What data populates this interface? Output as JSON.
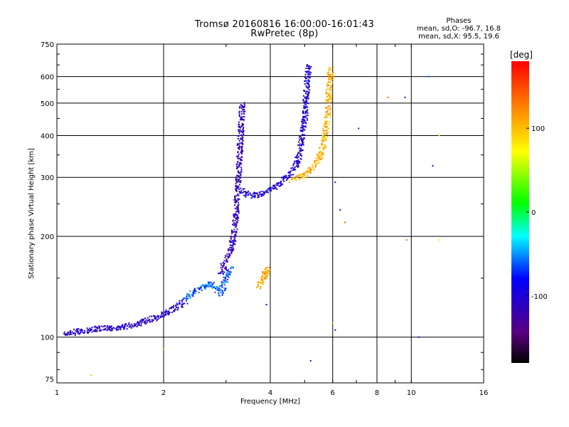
{
  "title": {
    "line1": "Tromsø 20160816 16:00:00-16:01:43",
    "line2": "RwPretec (8p)"
  },
  "stats": {
    "header": "Phases",
    "line_o": "mean, sd,O: -96.7, 16.8",
    "line_x": "mean, sd,X:  95.5, 19.6"
  },
  "chart_data": {
    "type": "scatter",
    "title": "Tromsø 20160816 16:00:00-16:01:43",
    "subtitle": "RwPretec (8p)",
    "xlabel": "Frequency [MHz]",
    "ylabel": "Stationary phase Virtual Height [km]",
    "x_scale": "log",
    "y_scale": "log",
    "xlim": [
      1,
      16
    ],
    "ylim": [
      73,
      750
    ],
    "x_ticks": [
      1,
      2,
      4,
      6,
      8,
      10,
      16
    ],
    "x_tick_labels": [
      "1",
      "2",
      "4",
      "6",
      "8",
      "10",
      "16"
    ],
    "y_ticks": [
      75,
      100,
      200,
      300,
      400,
      500,
      600,
      750
    ],
    "y_tick_labels": [
      "75",
      "100",
      "200",
      "300",
      "400",
      "500",
      "600",
      "750"
    ],
    "grid": true,
    "colorbar": {
      "label": "[deg]",
      "range": [
        -180,
        180
      ],
      "ticks": [
        -100,
        0,
        100
      ],
      "tick_labels": [
        "-100",
        "0",
        "100"
      ],
      "colors": [
        "#000000",
        "#5a0080",
        "#0000ff",
        "#00ffff",
        "#00ff00",
        "#ffff00",
        "#ff8000",
        "#ff0000"
      ]
    },
    "traces": [
      {
        "name": "",
        "phase": -105,
        "points": [
          [
            1.05,
            103
          ],
          [
            1.1,
            103
          ],
          [
            1.15,
            104
          ],
          [
            1.2,
            104
          ],
          [
            1.25,
            105
          ],
          [
            1.3,
            106
          ],
          [
            1.4,
            106
          ],
          [
            1.5,
            107
          ],
          [
            1.6,
            108
          ],
          [
            1.7,
            110
          ],
          [
            1.8,
            112
          ],
          [
            1.9,
            114
          ],
          [
            2.0,
            117
          ],
          [
            2.1,
            120
          ],
          [
            2.2,
            124
          ],
          [
            2.3,
            128
          ]
        ]
      },
      {
        "name": "",
        "phase": -60,
        "points": [
          [
            2.3,
            130
          ],
          [
            2.4,
            134
          ],
          [
            2.5,
            138
          ],
          [
            2.6,
            142
          ],
          [
            2.7,
            145
          ],
          [
            2.8,
            140
          ],
          [
            2.9,
            135
          ],
          [
            3.0,
            150
          ],
          [
            3.1,
            160
          ]
        ]
      },
      {
        "name": "",
        "phase": -115,
        "points": [
          [
            2.9,
            155
          ],
          [
            3.0,
            170
          ],
          [
            3.1,
            180
          ],
          [
            3.15,
            200
          ],
          [
            3.2,
            230
          ],
          [
            3.22,
            260
          ],
          [
            3.25,
            300
          ],
          [
            3.28,
            350
          ],
          [
            3.3,
            400
          ],
          [
            3.32,
            450
          ],
          [
            3.34,
            500
          ]
        ]
      },
      {
        "name": "",
        "phase": -100,
        "points": [
          [
            3.3,
            275
          ],
          [
            3.4,
            268
          ],
          [
            3.6,
            265
          ],
          [
            3.8,
            268
          ],
          [
            4.0,
            275
          ],
          [
            4.2,
            285
          ],
          [
            4.4,
            295
          ],
          [
            4.6,
            310
          ],
          [
            4.8,
            340
          ],
          [
            4.9,
            380
          ],
          [
            5.0,
            450
          ],
          [
            5.05,
            520
          ],
          [
            5.1,
            600
          ],
          [
            5.15,
            650
          ]
        ]
      },
      {
        "name": "",
        "phase": 105,
        "points": [
          [
            4.6,
            295
          ],
          [
            4.8,
            300
          ],
          [
            5.0,
            305
          ],
          [
            5.2,
            315
          ],
          [
            5.4,
            330
          ],
          [
            5.6,
            360
          ],
          [
            5.7,
            400
          ],
          [
            5.8,
            450
          ],
          [
            5.85,
            520
          ],
          [
            5.9,
            600
          ],
          [
            5.95,
            640
          ]
        ]
      },
      {
        "name": "",
        "phase": 110,
        "points": [
          [
            3.7,
            140
          ],
          [
            3.75,
            145
          ],
          [
            3.8,
            150
          ],
          [
            3.85,
            155
          ],
          [
            3.9,
            160
          ],
          [
            3.95,
            150
          ]
        ]
      }
    ],
    "outliers": [
      {
        "x": 10.5,
        "y": 100,
        "phase": -100
      },
      {
        "x": 11.5,
        "y": 325,
        "phase": -100
      },
      {
        "x": 11.2,
        "y": 600,
        "phase": -60
      },
      {
        "x": 8.6,
        "y": 520,
        "phase": 140
      },
      {
        "x": 9.6,
        "y": 520,
        "phase": -110
      },
      {
        "x": 12.0,
        "y": 400,
        "phase": 80
      },
      {
        "x": 6.3,
        "y": 240,
        "phase": -80
      },
      {
        "x": 6.5,
        "y": 220,
        "phase": 140
      },
      {
        "x": 7.1,
        "y": 420,
        "phase": -120
      },
      {
        "x": 9.7,
        "y": 195,
        "phase": 140
      },
      {
        "x": 12.0,
        "y": 195,
        "phase": 80
      },
      {
        "x": 6.0,
        "y": 110,
        "phase": 110
      },
      {
        "x": 6.1,
        "y": 105,
        "phase": -100
      },
      {
        "x": 5.2,
        "y": 85,
        "phase": -100
      },
      {
        "x": 1.25,
        "y": 77,
        "phase": 100
      },
      {
        "x": 3.9,
        "y": 125,
        "phase": -80
      },
      {
        "x": 6.1,
        "y": 290,
        "phase": -120
      },
      {
        "x": 2.0,
        "y": 92,
        "phase": 100
      }
    ]
  }
}
